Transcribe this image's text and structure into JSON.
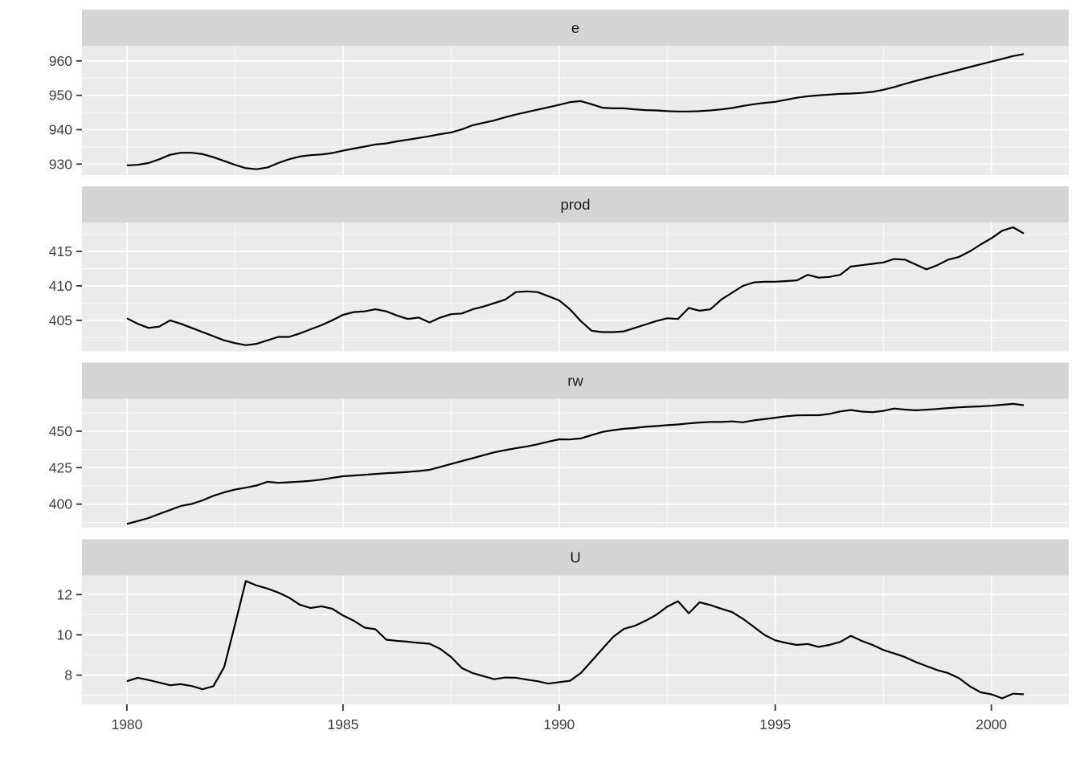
{
  "chart_data": {
    "type": "line",
    "title": "",
    "xlabel": "",
    "ylabel": "",
    "legend": "none",
    "grid": "on",
    "x": {
      "start": 1980,
      "step": 0.25,
      "n": 84,
      "lim": [
        1978.96,
        2001.79
      ],
      "ticks": [
        1980,
        1985,
        1990,
        1995,
        2000
      ],
      "tick_labels": [
        "1980",
        "1985",
        "1990",
        "1995",
        "2000"
      ],
      "minor": [
        1982.5,
        1987.5,
        1992.5,
        1997.5
      ]
    },
    "facets": [
      {
        "label": "e",
        "ylim": [
          926.8,
          964.4
        ],
        "yticks": [
          930,
          940,
          950,
          960
        ],
        "ytick_labels": [
          "930",
          "940",
          "950",
          "960"
        ],
        "yminor": [
          935,
          945,
          955
        ],
        "values": [
          929.6,
          929.8,
          930.3,
          931.4,
          932.7,
          933.3,
          933.3,
          932.9,
          932.0,
          930.9,
          929.8,
          928.8,
          928.5,
          929.0,
          930.3,
          931.4,
          932.2,
          932.6,
          932.8,
          933.2,
          933.9,
          934.5,
          935.1,
          935.7,
          936.0,
          936.6,
          937.1,
          937.6,
          938.1,
          938.7,
          939.2,
          940.1,
          941.3,
          942.0,
          942.7,
          943.6,
          944.4,
          945.1,
          945.8,
          946.5,
          947.2,
          948.0,
          948.3,
          947.4,
          946.4,
          946.2,
          946.2,
          945.9,
          945.7,
          945.6,
          945.4,
          945.3,
          945.3,
          945.4,
          945.6,
          945.9,
          946.3,
          946.9,
          947.4,
          947.8,
          948.1,
          948.7,
          949.3,
          949.7,
          950.0,
          950.2,
          950.4,
          950.5,
          950.7,
          951.0,
          951.6,
          952.4,
          953.3,
          954.2,
          955.0,
          955.8,
          956.6,
          957.4,
          958.2,
          959.0,
          959.8,
          960.6,
          961.4,
          962.0
        ]
      },
      {
        "label": "prod",
        "ylim": [
          400.5,
          419.2
        ],
        "yticks": [
          405,
          410,
          415
        ],
        "ytick_labels": [
          "405",
          "410",
          "415"
        ],
        "yminor": [
          402.5,
          407.5,
          412.5,
          417.5
        ],
        "values": [
          405.3,
          404.5,
          403.9,
          404.1,
          405.0,
          404.5,
          403.9,
          403.3,
          402.7,
          402.1,
          401.7,
          401.4,
          401.6,
          402.1,
          402.6,
          402.6,
          403.1,
          403.7,
          404.3,
          405.0,
          405.8,
          406.2,
          406.3,
          406.6,
          406.3,
          405.7,
          405.2,
          405.4,
          404.7,
          405.4,
          405.9,
          406.0,
          406.6,
          407.0,
          407.5,
          408.0,
          409.1,
          409.2,
          409.1,
          408.5,
          407.9,
          406.6,
          404.9,
          403.5,
          403.3,
          403.3,
          403.4,
          403.9,
          404.4,
          404.9,
          405.3,
          405.2,
          406.8,
          406.4,
          406.6,
          408.0,
          409.0,
          410.0,
          410.5,
          410.6,
          410.6,
          410.7,
          410.8,
          411.6,
          411.2,
          411.3,
          411.6,
          412.8,
          413.0,
          413.2,
          413.4,
          413.9,
          413.8,
          413.1,
          412.4,
          413.0,
          413.8,
          414.2,
          415.0,
          416.0,
          416.9,
          418.0,
          418.5,
          417.6
        ]
      },
      {
        "label": "rw",
        "ylim": [
          383.9,
          472.2
        ],
        "yticks": [
          400,
          425,
          450
        ],
        "ytick_labels": [
          "400",
          "425",
          "450"
        ],
        "yminor": [
          387.5,
          412.5,
          437.5,
          462.5
        ],
        "values": [
          386.5,
          388.4,
          390.5,
          393.3,
          396.0,
          398.8,
          400.2,
          402.6,
          405.7,
          408.1,
          410.0,
          411.3,
          412.8,
          415.3,
          414.6,
          415.0,
          415.4,
          416.0,
          416.8,
          418.0,
          419.1,
          419.6,
          420.1,
          420.7,
          421.2,
          421.6,
          422.1,
          422.7,
          423.5,
          425.5,
          427.5,
          429.5,
          431.5,
          433.5,
          435.5,
          437.0,
          438.3,
          439.5,
          441.0,
          442.8,
          444.4,
          444.3,
          445.0,
          447.3,
          449.5,
          450.7,
          451.6,
          452.2,
          453.0,
          453.5,
          454.1,
          454.6,
          455.3,
          455.9,
          456.3,
          456.3,
          456.7,
          456.1,
          457.4,
          458.2,
          459.2,
          460.2,
          460.8,
          460.9,
          460.9,
          461.8,
          463.5,
          464.5,
          463.4,
          463.0,
          463.9,
          465.5,
          464.8,
          464.3,
          464.7,
          465.2,
          465.8,
          466.3,
          466.7,
          467.0,
          467.4,
          468.1,
          468.7,
          467.8
        ]
      },
      {
        "label": "U",
        "ylim": [
          6.55,
          12.95
        ],
        "yticks": [
          8,
          10,
          12
        ],
        "ytick_labels": [
          "8",
          "10",
          "12"
        ],
        "yminor": [
          7,
          9,
          11
        ],
        "values": [
          7.7,
          7.87,
          7.76,
          7.63,
          7.5,
          7.55,
          7.46,
          7.3,
          7.45,
          8.4,
          10.5,
          12.67,
          12.45,
          12.3,
          12.1,
          11.85,
          11.5,
          11.33,
          11.42,
          11.3,
          10.96,
          10.7,
          10.36,
          10.28,
          9.76,
          9.7,
          9.66,
          9.6,
          9.56,
          9.3,
          8.9,
          8.35,
          8.1,
          7.95,
          7.8,
          7.88,
          7.87,
          7.78,
          7.7,
          7.58,
          7.65,
          7.72,
          8.1,
          8.7,
          9.3,
          9.9,
          10.3,
          10.45,
          10.7,
          11.0,
          11.4,
          11.67,
          11.07,
          11.62,
          11.48,
          11.3,
          11.13,
          10.8,
          10.4,
          10.0,
          9.73,
          9.6,
          9.5,
          9.55,
          9.4,
          9.5,
          9.65,
          9.95,
          9.7,
          9.5,
          9.25,
          9.08,
          8.9,
          8.65,
          8.45,
          8.25,
          8.1,
          7.85,
          7.45,
          7.15,
          7.05,
          6.85,
          7.08,
          7.05
        ]
      }
    ],
    "colors": {
      "background": "#FFFFFF",
      "panel_bg": "#EBEBEB",
      "strip_bg": "#D5D5D5",
      "grid_major": "#FFFFFF",
      "grid_minor": "#FFFFFF",
      "line": "#000000",
      "axis_text": "#404040",
      "strip_text": "#1A1A1A",
      "tick_mark": "#333333"
    }
  }
}
